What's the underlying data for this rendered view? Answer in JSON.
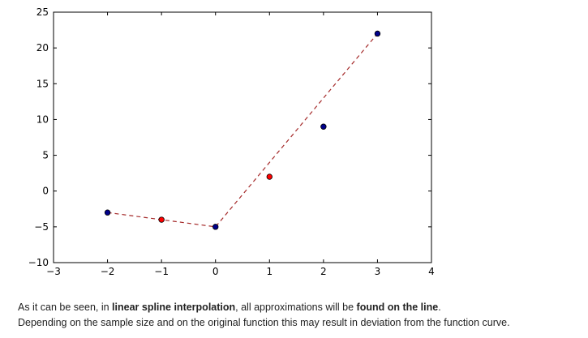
{
  "chart_data": {
    "type": "scatter",
    "title": "",
    "xlabel": "",
    "ylabel": "",
    "xlim": [
      -3,
      4
    ],
    "ylim": [
      -10,
      25
    ],
    "x_ticks": [
      -3,
      -2,
      -1,
      0,
      1,
      2,
      3,
      4
    ],
    "y_ticks": [
      -10,
      -5,
      0,
      5,
      10,
      15,
      20,
      25
    ],
    "x_tick_labels": [
      "−3",
      "−2",
      "−1",
      "0",
      "1",
      "2",
      "3",
      "4"
    ],
    "y_tick_labels": [
      "−10",
      "−5",
      "0",
      "5",
      "10",
      "15",
      "20",
      "25"
    ],
    "grid": false,
    "legend": "none",
    "series": [
      {
        "style": "line-dashed",
        "color": "#a52a2a",
        "x": [
          -2,
          0,
          3
        ],
        "y": [
          -3,
          -5,
          22
        ]
      },
      {
        "style": "markers",
        "color": "#00008b",
        "x": [
          -2,
          0,
          2,
          3
        ],
        "y": [
          -3,
          -5,
          9,
          22
        ]
      },
      {
        "style": "markers",
        "color": "#ff0000",
        "x": [
          -1,
          1
        ],
        "y": [
          -4,
          2
        ]
      }
    ]
  },
  "caption": {
    "line1_prefix": "As it can be seen, in ",
    "line1_bold1": "linear spline interpolation",
    "line1_mid": ", all approximations will be ",
    "line1_bold2": "found on the line",
    "line1_suffix": ".",
    "line2": "Depending on the sample size and on the original function this may result in deviation from the function curve."
  }
}
